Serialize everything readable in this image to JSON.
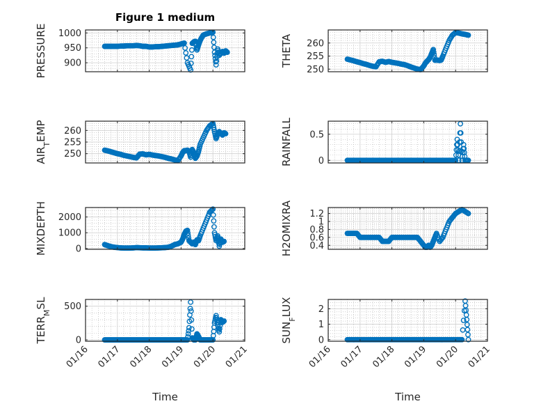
{
  "figure": {
    "title": "Figure 1 medium",
    "marker_color": "#0072BD",
    "axes_color": "#262626",
    "grid_color": "#b0b0b0"
  },
  "chart_data": [
    {
      "type": "scatter",
      "title": "Figure 1 medium",
      "ylabel": "PRESSURE",
      "xlabel": "",
      "xlim": [
        "01/16",
        "01/21"
      ],
      "ylim": [
        870,
        1010
      ],
      "yticks": [
        900,
        950,
        1000
      ],
      "ytick_labels": [
        "900",
        "950",
        "1000"
      ],
      "xtick_labels": [],
      "grid": true,
      "minor_grid": true,
      "series": [
        {
          "x": [
            0.6,
            0.7,
            0.8,
            0.9,
            1.0,
            1.1,
            1.2,
            1.3,
            1.4,
            1.5,
            1.6,
            1.7,
            1.8,
            1.9,
            2.0,
            2.1,
            2.2,
            2.3,
            2.4,
            2.5,
            2.6,
            2.7,
            2.8,
            2.9,
            3.0,
            3.1,
            3.2,
            3.3,
            3.35,
            3.4,
            3.45,
            3.5,
            3.55,
            3.6,
            3.65,
            3.7,
            3.8,
            3.9,
            4.0,
            4.05,
            4.1,
            4.15,
            4.2,
            4.3,
            4.35,
            4.4,
            4.45
          ],
          "y": [
            955,
            955,
            955,
            955,
            955,
            956,
            956,
            957,
            957,
            957,
            958,
            957,
            955,
            955,
            953,
            953,
            954,
            954,
            955,
            956,
            957,
            958,
            959,
            960,
            963,
            966,
            900,
            876,
            965,
            970,
            972,
            943,
            960,
            975,
            985,
            993,
            997,
            1000,
            1002,
            935,
            893,
            946,
            925,
            938,
            932,
            940,
            935
          ]
        }
      ]
    },
    {
      "type": "scatter",
      "ylabel": "THETA",
      "xlabel": "",
      "xlim": [
        "01/16",
        "01/21"
      ],
      "ylim": [
        249,
        265
      ],
      "yticks": [
        250,
        255,
        260
      ],
      "ytick_labels": [
        "250",
        "255",
        "260"
      ],
      "xtick_labels": [],
      "grid": true,
      "minor_grid": true,
      "series": [
        {
          "x": [
            0.6,
            0.7,
            0.8,
            0.9,
            1.0,
            1.1,
            1.2,
            1.3,
            1.4,
            1.5,
            1.6,
            1.7,
            1.8,
            1.9,
            2.0,
            2.1,
            2.2,
            2.3,
            2.4,
            2.5,
            2.6,
            2.7,
            2.8,
            2.9,
            3.0,
            3.05,
            3.1,
            3.15,
            3.2,
            3.25,
            3.3,
            3.35,
            3.4,
            3.45,
            3.5,
            3.55,
            3.6,
            3.7,
            3.8,
            3.9,
            4.0,
            4.1,
            4.2,
            4.3,
            4.4
          ],
          "y": [
            253.8,
            253.5,
            253.2,
            252.8,
            252.5,
            252.1,
            251.8,
            251.4,
            251.1,
            250.9,
            252.8,
            253.0,
            252.6,
            252.9,
            252.6,
            252.4,
            252.2,
            251.9,
            251.7,
            251.3,
            250.8,
            250.4,
            250.0,
            249.8,
            251.2,
            252.3,
            253.0,
            253.6,
            254.5,
            256.0,
            257.5,
            253.4,
            253.5,
            253.4,
            253.3,
            253.5,
            255.0,
            258.0,
            261.0,
            263.0,
            264.0,
            263.8,
            263.5,
            263.3,
            263.0
          ]
        }
      ]
    },
    {
      "type": "scatter",
      "ylabel": "AIR_TEMP",
      "xlabel": "",
      "xlim": [
        "01/16",
        "01/21"
      ],
      "ylim": [
        246,
        264
      ],
      "yticks": [
        250,
        255,
        260
      ],
      "ytick_labels": [
        "250",
        "255",
        "260"
      ],
      "xtick_labels": [],
      "grid": true,
      "minor_grid": true,
      "series": [
        {
          "x": [
            0.6,
            0.7,
            0.8,
            0.9,
            1.0,
            1.1,
            1.2,
            1.3,
            1.4,
            1.5,
            1.6,
            1.7,
            1.8,
            1.9,
            2.0,
            2.1,
            2.2,
            2.3,
            2.4,
            2.5,
            2.6,
            2.7,
            2.8,
            2.9,
            3.0,
            3.05,
            3.1,
            3.15,
            3.2,
            3.25,
            3.3,
            3.35,
            3.4,
            3.45,
            3.5,
            3.55,
            3.6,
            3.7,
            3.8,
            3.9,
            4.0,
            4.05,
            4.1,
            4.15,
            4.2,
            4.3,
            4.35,
            4.4
          ],
          "y": [
            251.5,
            251.2,
            250.8,
            250.4,
            250.0,
            249.7,
            249.3,
            249.0,
            248.7,
            248.4,
            248.2,
            249.8,
            249.9,
            249.5,
            249.7,
            249.4,
            249.2,
            249.0,
            248.7,
            248.4,
            248.0,
            247.7,
            247.3,
            247.0,
            249.0,
            250.5,
            251.3,
            251.3,
            251.5,
            251.0,
            248.5,
            251.8,
            250.5,
            248.0,
            249.0,
            251.0,
            254.0,
            257.0,
            260.0,
            262.0,
            263.0,
            259.5,
            256.5,
            258.5,
            259.5,
            258.0,
            259.0,
            258.6
          ]
        }
      ]
    },
    {
      "type": "scatter",
      "ylabel": "RAINFALL",
      "xlabel": "",
      "xlim": [
        "01/16",
        "01/21"
      ],
      "ylim": [
        -0.05,
        0.75
      ],
      "yticks": [
        0,
        0.5
      ],
      "ytick_labels": [
        "0",
        "0.5"
      ],
      "xtick_labels": [],
      "grid": true,
      "minor_grid": true,
      "series": [
        {
          "x": [
            0.6,
            0.7,
            0.8,
            0.9,
            1.0,
            1.1,
            1.2,
            1.3,
            1.4,
            1.5,
            1.6,
            1.7,
            1.8,
            1.9,
            2.0,
            2.1,
            2.2,
            2.3,
            2.4,
            2.5,
            2.6,
            2.7,
            2.8,
            2.9,
            3.0,
            3.1,
            3.2,
            3.3,
            3.4,
            3.5,
            3.6,
            3.7,
            3.8,
            3.9,
            4.0,
            4.05,
            4.1,
            4.15,
            4.2,
            4.25,
            4.3,
            4.35,
            4.4
          ],
          "y": [
            0,
            0,
            0,
            0,
            0,
            0,
            0,
            0,
            0,
            0,
            0,
            0,
            0,
            0,
            0,
            0,
            0,
            0,
            0,
            0,
            0,
            0,
            0,
            0,
            0,
            0,
            0,
            0,
            0,
            0,
            0,
            0,
            0,
            0,
            0,
            0.4,
            0,
            0.7,
            0,
            0.3,
            0,
            0,
            0
          ]
        }
      ]
    },
    {
      "type": "scatter",
      "ylabel": "MIXDEPTH",
      "xlabel": "",
      "xlim": [
        "01/16",
        "01/21"
      ],
      "ylim": [
        -50,
        2600
      ],
      "yticks": [
        0,
        1000,
        2000
      ],
      "ytick_labels": [
        "0",
        "1000",
        "2000"
      ],
      "xtick_labels": [],
      "grid": true,
      "minor_grid": true,
      "series": [
        {
          "x": [
            0.6,
            0.7,
            0.8,
            0.9,
            1.0,
            1.1,
            1.2,
            1.3,
            1.4,
            1.5,
            1.6,
            1.7,
            1.8,
            1.9,
            2.0,
            2.1,
            2.2,
            2.3,
            2.4,
            2.5,
            2.6,
            2.7,
            2.8,
            2.9,
            3.0,
            3.05,
            3.1,
            3.15,
            3.2,
            3.25,
            3.3,
            3.35,
            3.4,
            3.45,
            3.5,
            3.55,
            3.6,
            3.7,
            3.8,
            3.9,
            4.0,
            4.05,
            4.1,
            4.15,
            4.2,
            4.25,
            4.3,
            4.35
          ],
          "y": [
            250,
            180,
            120,
            80,
            60,
            40,
            30,
            30,
            30,
            40,
            60,
            50,
            40,
            40,
            30,
            30,
            30,
            40,
            50,
            60,
            80,
            150,
            250,
            300,
            400,
            600,
            900,
            1100,
            1150,
            500,
            400,
            300,
            400,
            250,
            550,
            500,
            800,
            1300,
            1800,
            2300,
            2500,
            1000,
            500,
            800,
            150,
            600,
            400,
            450
          ]
        }
      ]
    },
    {
      "type": "scatter",
      "ylabel": "H2OMIXRA",
      "xlabel": "",
      "xlim": [
        "01/16",
        "01/21"
      ],
      "ylim": [
        0.3,
        1.35
      ],
      "yticks": [
        0.4,
        0.6,
        0.8,
        1,
        1.2
      ],
      "ytick_labels": [
        "0.4",
        "0.6",
        "0.8",
        "1",
        "1.2"
      ],
      "xtick_labels": [],
      "grid": true,
      "minor_grid": true,
      "series": [
        {
          "x": [
            0.6,
            0.7,
            0.8,
            0.9,
            1.0,
            1.1,
            1.2,
            1.3,
            1.4,
            1.5,
            1.6,
            1.7,
            1.8,
            1.9,
            2.0,
            2.1,
            2.2,
            2.3,
            2.4,
            2.5,
            2.6,
            2.7,
            2.8,
            2.9,
            3.0,
            3.05,
            3.1,
            3.15,
            3.2,
            3.25,
            3.3,
            3.35,
            3.4,
            3.5,
            3.6,
            3.7,
            3.8,
            3.9,
            4.0,
            4.1,
            4.2,
            4.3,
            4.4
          ],
          "y": [
            0.7,
            0.7,
            0.7,
            0.7,
            0.6,
            0.6,
            0.6,
            0.6,
            0.6,
            0.6,
            0.6,
            0.5,
            0.5,
            0.5,
            0.6,
            0.6,
            0.6,
            0.6,
            0.6,
            0.6,
            0.6,
            0.6,
            0.6,
            0.5,
            0.4,
            0.35,
            0.35,
            0.4,
            0.35,
            0.4,
            0.5,
            0.6,
            0.7,
            0.5,
            0.6,
            0.8,
            1.0,
            1.1,
            1.2,
            1.25,
            1.3,
            1.25,
            1.2
          ]
        }
      ]
    },
    {
      "type": "scatter",
      "ylabel": "TERR_MSL",
      "xlabel": "Time",
      "xlim": [
        "01/16",
        "01/21"
      ],
      "ylim": [
        -20,
        600
      ],
      "yticks": [
        0,
        500
      ],
      "ytick_labels": [
        "0",
        "500"
      ],
      "xtick_labels": [
        "01/16",
        "01/17",
        "01/18",
        "01/19",
        "01/20",
        "01/21"
      ],
      "grid": true,
      "minor_grid": true,
      "series": [
        {
          "x": [
            0.6,
            0.7,
            0.8,
            0.9,
            1.0,
            1.1,
            1.2,
            1.3,
            1.4,
            1.5,
            1.6,
            1.7,
            1.8,
            1.9,
            2.0,
            2.1,
            2.2,
            2.3,
            2.4,
            2.5,
            2.6,
            2.7,
            2.8,
            2.9,
            3.0,
            3.1,
            3.2,
            3.25,
            3.3,
            3.35,
            3.4,
            3.45,
            3.5,
            3.55,
            3.6,
            3.7,
            3.8,
            3.9,
            4.0,
            4.05,
            4.1,
            4.15,
            4.2,
            4.25,
            4.3,
            4.35
          ],
          "y": [
            0,
            0,
            0,
            0,
            0,
            0,
            0,
            0,
            0,
            0,
            0,
            0,
            0,
            0,
            0,
            0,
            0,
            0,
            0,
            0,
            0,
            0,
            0,
            0,
            0,
            0,
            0,
            180,
            560,
            30,
            0,
            0,
            90,
            50,
            0,
            0,
            0,
            0,
            0,
            250,
            360,
            220,
            120,
            300,
            260,
            280
          ]
        }
      ]
    },
    {
      "type": "scatter",
      "ylabel": "SUN_FLUX",
      "xlabel": "Time",
      "xlim": [
        "01/16",
        "01/21"
      ],
      "ylim": [
        -0.1,
        2.6
      ],
      "yticks": [
        0,
        1,
        2
      ],
      "ytick_labels": [
        "0",
        "1",
        "2"
      ],
      "xtick_labels": [
        "01/16",
        "01/17",
        "01/18",
        "01/19",
        "01/20",
        "01/21"
      ],
      "grid": true,
      "minor_grid": true,
      "series": [
        {
          "x": [
            0.6,
            0.7,
            0.8,
            0.9,
            1.0,
            1.1,
            1.2,
            1.3,
            1.4,
            1.5,
            1.6,
            1.7,
            1.8,
            1.9,
            2.0,
            2.1,
            2.2,
            2.3,
            2.4,
            2.5,
            2.6,
            2.7,
            2.8,
            2.9,
            3.0,
            3.1,
            3.2,
            3.3,
            3.4,
            3.5,
            3.6,
            3.7,
            3.8,
            3.9,
            4.0,
            4.1,
            4.2,
            4.3,
            4.35,
            4.4
          ],
          "y": [
            0,
            0,
            0,
            0,
            0,
            0,
            0,
            0,
            0,
            0,
            0,
            0,
            0,
            0,
            0,
            0,
            0,
            0,
            0,
            0,
            0,
            0,
            0,
            0,
            0,
            0,
            0,
            0,
            0,
            0,
            0,
            0,
            0,
            0,
            0,
            0,
            0,
            2.5,
            1.3,
            0
          ]
        }
      ]
    }
  ]
}
